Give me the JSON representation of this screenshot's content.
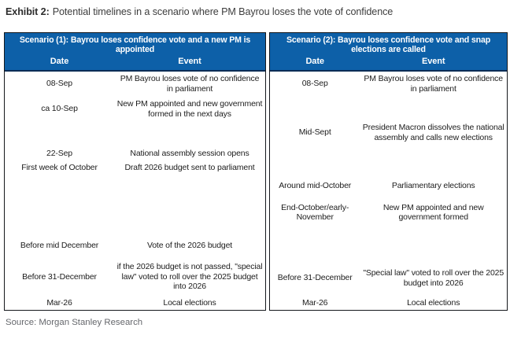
{
  "exhibit": {
    "label": "Exhibit 2:",
    "title": "Potential timelines in a scenario where PM Bayrou loses the vote of confidence"
  },
  "source": "Source: Morgan Stanley Research",
  "colors": {
    "header_blue": "#0d60a8",
    "header_underline": "#0a2c55"
  },
  "tables": [
    {
      "title": "Scenario (1): Bayrou loses confidence vote and a new PM is appointed",
      "columns": {
        "date": "Date",
        "event": "Event"
      },
      "rows": [
        {
          "date": "08-Sep",
          "event": "PM Bayrou loses vote of no confidence in parliament"
        },
        {
          "date": "ca 10-Sep",
          "event": "New PM appointed and new government formed in the next days"
        },
        {
          "date": "",
          "event": ""
        },
        {
          "date": "22-Sep",
          "event": "National assembly session opens"
        },
        {
          "date": "First week of October",
          "event": "Draft 2026 budget sent to parliament"
        },
        {
          "date": "",
          "event": ""
        },
        {
          "date": "Before mid December",
          "event": "Vote of the 2026 budget"
        },
        {
          "date": "Before 31-December",
          "event": "if the 2026 budget is not passed, \"special law\" voted to roll over the 2025 budget into 2026"
        },
        {
          "date": "Mar-26",
          "event": "Local elections"
        }
      ]
    },
    {
      "title": "Scenario (2):  Bayrou loses confidence vote and snap elections are called",
      "columns": {
        "date": "Date",
        "event": "Event"
      },
      "rows": [
        {
          "date": "08-Sep",
          "event": "PM Bayrou loses vote of no confidence in parliament"
        },
        {
          "date": "",
          "event": ""
        },
        {
          "date": "Mid-Sept",
          "event": "President Macron dissolves the national assembly and calls new elections"
        },
        {
          "date": "",
          "event": ""
        },
        {
          "date": "Around mid-October",
          "event": "Parliamentary elections"
        },
        {
          "date": "End-October/early-November",
          "event": "New PM appointed and new government formed"
        },
        {
          "date": "",
          "event": ""
        },
        {
          "date": "Before 31-December",
          "event": "\"Special law\" voted to roll over the 2025 budget into 2026"
        },
        {
          "date": "Mar-26",
          "event": "Local elections"
        }
      ]
    }
  ]
}
